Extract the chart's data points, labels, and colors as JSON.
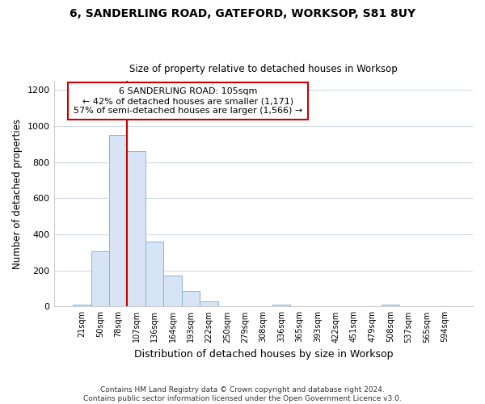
{
  "title_line1": "6, SANDERLING ROAD, GATEFORD, WORKSOP, S81 8UY",
  "title_line2": "Size of property relative to detached houses in Worksop",
  "xlabel": "Distribution of detached houses by size in Worksop",
  "ylabel": "Number of detached properties",
  "bar_labels": [
    "21sqm",
    "50sqm",
    "78sqm",
    "107sqm",
    "136sqm",
    "164sqm",
    "193sqm",
    "222sqm",
    "250sqm",
    "279sqm",
    "308sqm",
    "336sqm",
    "365sqm",
    "393sqm",
    "422sqm",
    "451sqm",
    "479sqm",
    "508sqm",
    "537sqm",
    "565sqm",
    "594sqm"
  ],
  "bar_values": [
    12,
    305,
    950,
    860,
    358,
    172,
    85,
    30,
    0,
    0,
    0,
    12,
    0,
    0,
    0,
    0,
    0,
    12,
    0,
    0,
    0
  ],
  "bar_color": "#d6e4f5",
  "bar_edge_color": "#8ab4d8",
  "vline_x": 2.5,
  "vline_color": "#cc0000",
  "annotation_text": "6 SANDERLING ROAD: 105sqm\n← 42% of detached houses are smaller (1,171)\n57% of semi-detached houses are larger (1,566) →",
  "annotation_box_color": "#ffffff",
  "annotation_box_edge": "#cc0000",
  "ylim": [
    0,
    1250
  ],
  "yticks": [
    0,
    200,
    400,
    600,
    800,
    1000,
    1200
  ],
  "footnote": "Contains HM Land Registry data © Crown copyright and database right 2024.\nContains public sector information licensed under the Open Government Licence v3.0.",
  "bg_color": "#ffffff",
  "plot_bg_color": "#ffffff",
  "grid_color": "#d0d8e8"
}
